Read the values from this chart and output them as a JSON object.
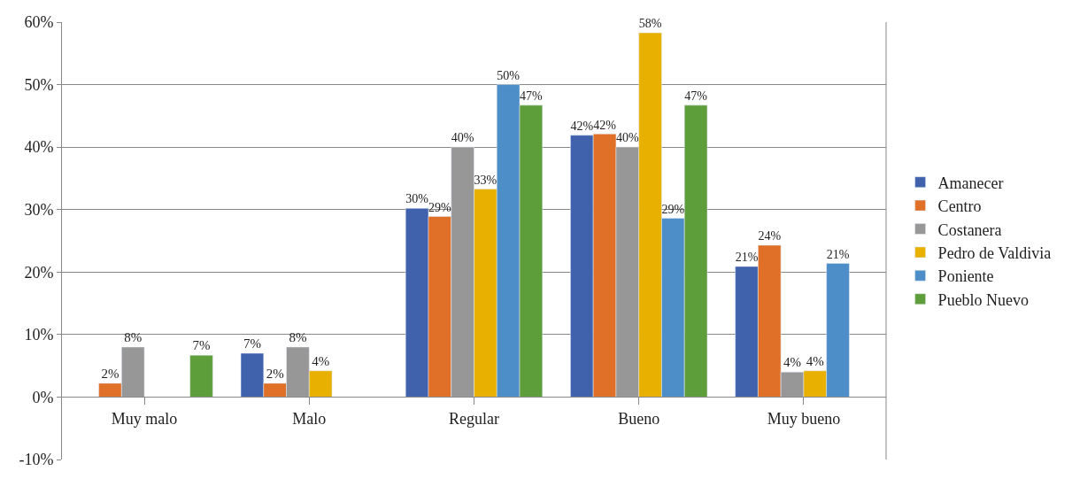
{
  "chart_data": {
    "type": "bar",
    "categories": [
      "Muy malo",
      "Malo",
      "Regular",
      "Bueno",
      "Muy bueno"
    ],
    "series": [
      {
        "name": "Amanecer",
        "color": "#4062ad",
        "values": [
          null,
          7.0,
          30.2,
          41.9,
          20.9
        ],
        "value_labels": [
          null,
          "7%",
          "30%",
          "42%",
          "21%"
        ]
      },
      {
        "name": "Centro",
        "color": "#e07028",
        "values": [
          2.2,
          2.2,
          28.9,
          42.1,
          24.3
        ],
        "value_labels": [
          "2%",
          "2%",
          "29%",
          "42%",
          "24%"
        ]
      },
      {
        "name": "Costanera",
        "color": "#979797",
        "values": [
          8.0,
          8.0,
          40.0,
          40.0,
          4.0
        ],
        "value_labels": [
          "8%",
          "8%",
          "40%",
          "40%",
          "4%"
        ]
      },
      {
        "name": "Pedro de Valdivia",
        "color": "#e8b000",
        "values": [
          null,
          4.2,
          33.3,
          58.3,
          4.2
        ],
        "value_labels": [
          null,
          "4%",
          "33%",
          "58%",
          "4%"
        ]
      },
      {
        "name": "Poniente",
        "color": "#4d8dc8",
        "values": [
          null,
          null,
          50.0,
          28.6,
          21.4
        ],
        "value_labels": [
          null,
          null,
          "50%",
          "29%",
          "21%"
        ]
      },
      {
        "name": "Pueblo Nuevo",
        "color": "#5e9e3a",
        "values": [
          6.7,
          null,
          46.7,
          46.7,
          null
        ],
        "value_labels": [
          "7%",
          null,
          "47%",
          "47%",
          null
        ]
      }
    ],
    "ylim": [
      -10,
      60
    ],
    "yticks": [
      {
        "value": -10,
        "label": "-10%"
      },
      {
        "value": 0,
        "label": "0%"
      },
      {
        "value": 10,
        "label": "10%"
      },
      {
        "value": 20,
        "label": "20%"
      },
      {
        "value": 30,
        "label": "30%"
      },
      {
        "value": 40,
        "label": "40%"
      },
      {
        "value": 50,
        "label": "50%"
      },
      {
        "value": 60,
        "label": "60%"
      }
    ],
    "grid": "y",
    "legend": "right"
  }
}
